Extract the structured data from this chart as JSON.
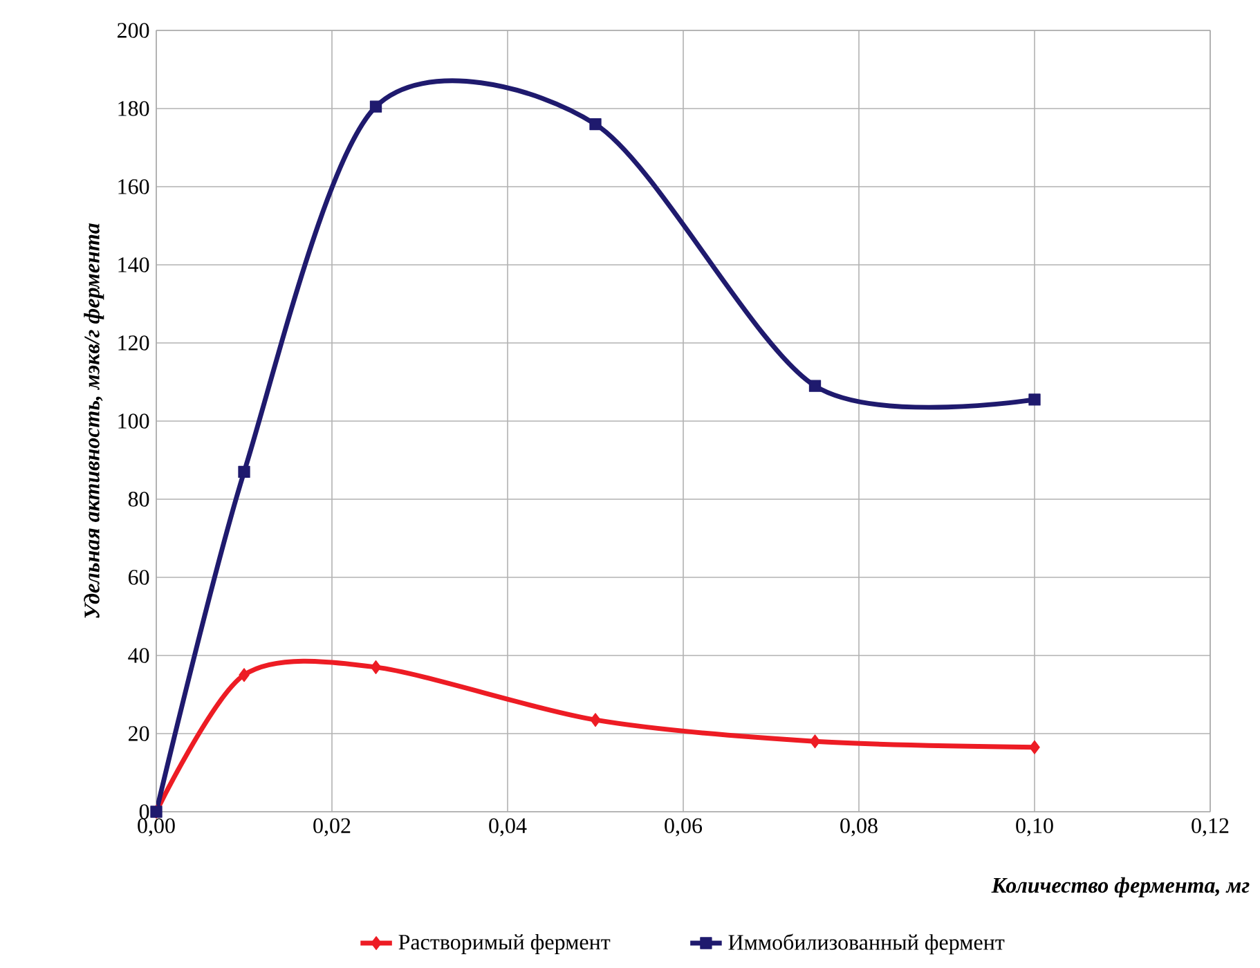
{
  "chart_data": {
    "type": "line",
    "xlabel": "Количество фермента, мг",
    "ylabel": "Удельная активность, мэкв/г фермента",
    "x": [
      0,
      0.01,
      0.025,
      0.05,
      0.075,
      0.1
    ],
    "series": [
      {
        "name": "Растворимый фермент",
        "color": "#ed1c24",
        "marker": "diamond",
        "values": [
          0,
          35,
          37,
          23.5,
          18,
          16.5
        ]
      },
      {
        "name": "Иммобилизованный фермент",
        "color": "#1f1a6e",
        "marker": "square",
        "values": [
          0,
          87,
          180.5,
          176,
          109,
          105.5
        ]
      }
    ],
    "xlim": [
      0,
      0.12
    ],
    "xticks": [
      {
        "value": 0,
        "label": "0,00"
      },
      {
        "value": 0.02,
        "label": "0,02"
      },
      {
        "value": 0.04,
        "label": "0,04"
      },
      {
        "value": 0.06,
        "label": "0,06"
      },
      {
        "value": 0.08,
        "label": "0,08"
      },
      {
        "value": 0.1,
        "label": "0,10"
      },
      {
        "value": 0.12,
        "label": "0,12"
      }
    ],
    "ylim": [
      0,
      200
    ],
    "yticks": [
      0,
      20,
      40,
      60,
      80,
      100,
      120,
      140,
      160,
      180,
      200
    ],
    "grid": true,
    "legend": "bottom",
    "line_style": "solid"
  }
}
